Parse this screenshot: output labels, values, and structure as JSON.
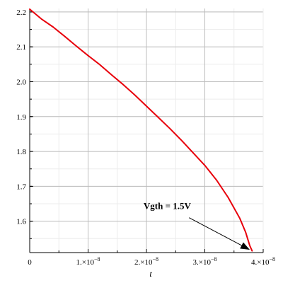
{
  "chart_data": {
    "type": "line",
    "title": "",
    "xlabel": "t",
    "ylabel": "",
    "xlim": [
      0,
      4e-08
    ],
    "ylim": [
      1.51,
      2.21
    ],
    "grid": true,
    "x_ticks": [
      {
        "value": 0,
        "mant": "0",
        "exp": ""
      },
      {
        "value": 1e-08,
        "mant": "1.×10",
        "exp": "−8"
      },
      {
        "value": 2e-08,
        "mant": "2.×10",
        "exp": "−8"
      },
      {
        "value": 3e-08,
        "mant": "3.×10",
        "exp": "−8"
      },
      {
        "value": 4e-08,
        "mant": "4.×10",
        "exp": "−8"
      }
    ],
    "y_ticks": [
      {
        "value": 1.6,
        "label": "1.6"
      },
      {
        "value": 1.7,
        "label": "1.7"
      },
      {
        "value": 1.8,
        "label": "1.8"
      },
      {
        "value": 1.9,
        "label": "1.9"
      },
      {
        "value": 2.0,
        "label": "2.0"
      },
      {
        "value": 2.1,
        "label": "2.1"
      },
      {
        "value": 2.2,
        "label": "2.2"
      }
    ],
    "series": [
      {
        "color": "#e8000b",
        "x": [
          0,
          2e-09,
          4e-09,
          6e-09,
          8e-09,
          1e-08,
          1.2e-08,
          1.4e-08,
          1.6e-08,
          1.8e-08,
          2e-08,
          2.2e-08,
          2.4e-08,
          2.6e-08,
          2.8e-08,
          3e-08,
          3.2e-08,
          3.4e-08,
          3.6e-08,
          3.7e-08,
          3.77e-08,
          3.81e-08
        ],
        "y": [
          2.208,
          2.18,
          2.157,
          2.13,
          2.102,
          2.075,
          2.049,
          2.02,
          1.992,
          1.962,
          1.93,
          1.898,
          1.866,
          1.832,
          1.796,
          1.76,
          1.718,
          1.668,
          1.608,
          1.568,
          1.53,
          1.515
        ]
      }
    ],
    "annotation": {
      "text": "Vgth = 1.5V",
      "text_x": 1.95e-08,
      "text_y": 1.635,
      "arrow_from_x": 2.73e-08,
      "arrow_from_y": 1.61,
      "arrow_to_x": 3.77e-08,
      "arrow_to_y": 1.518
    }
  }
}
